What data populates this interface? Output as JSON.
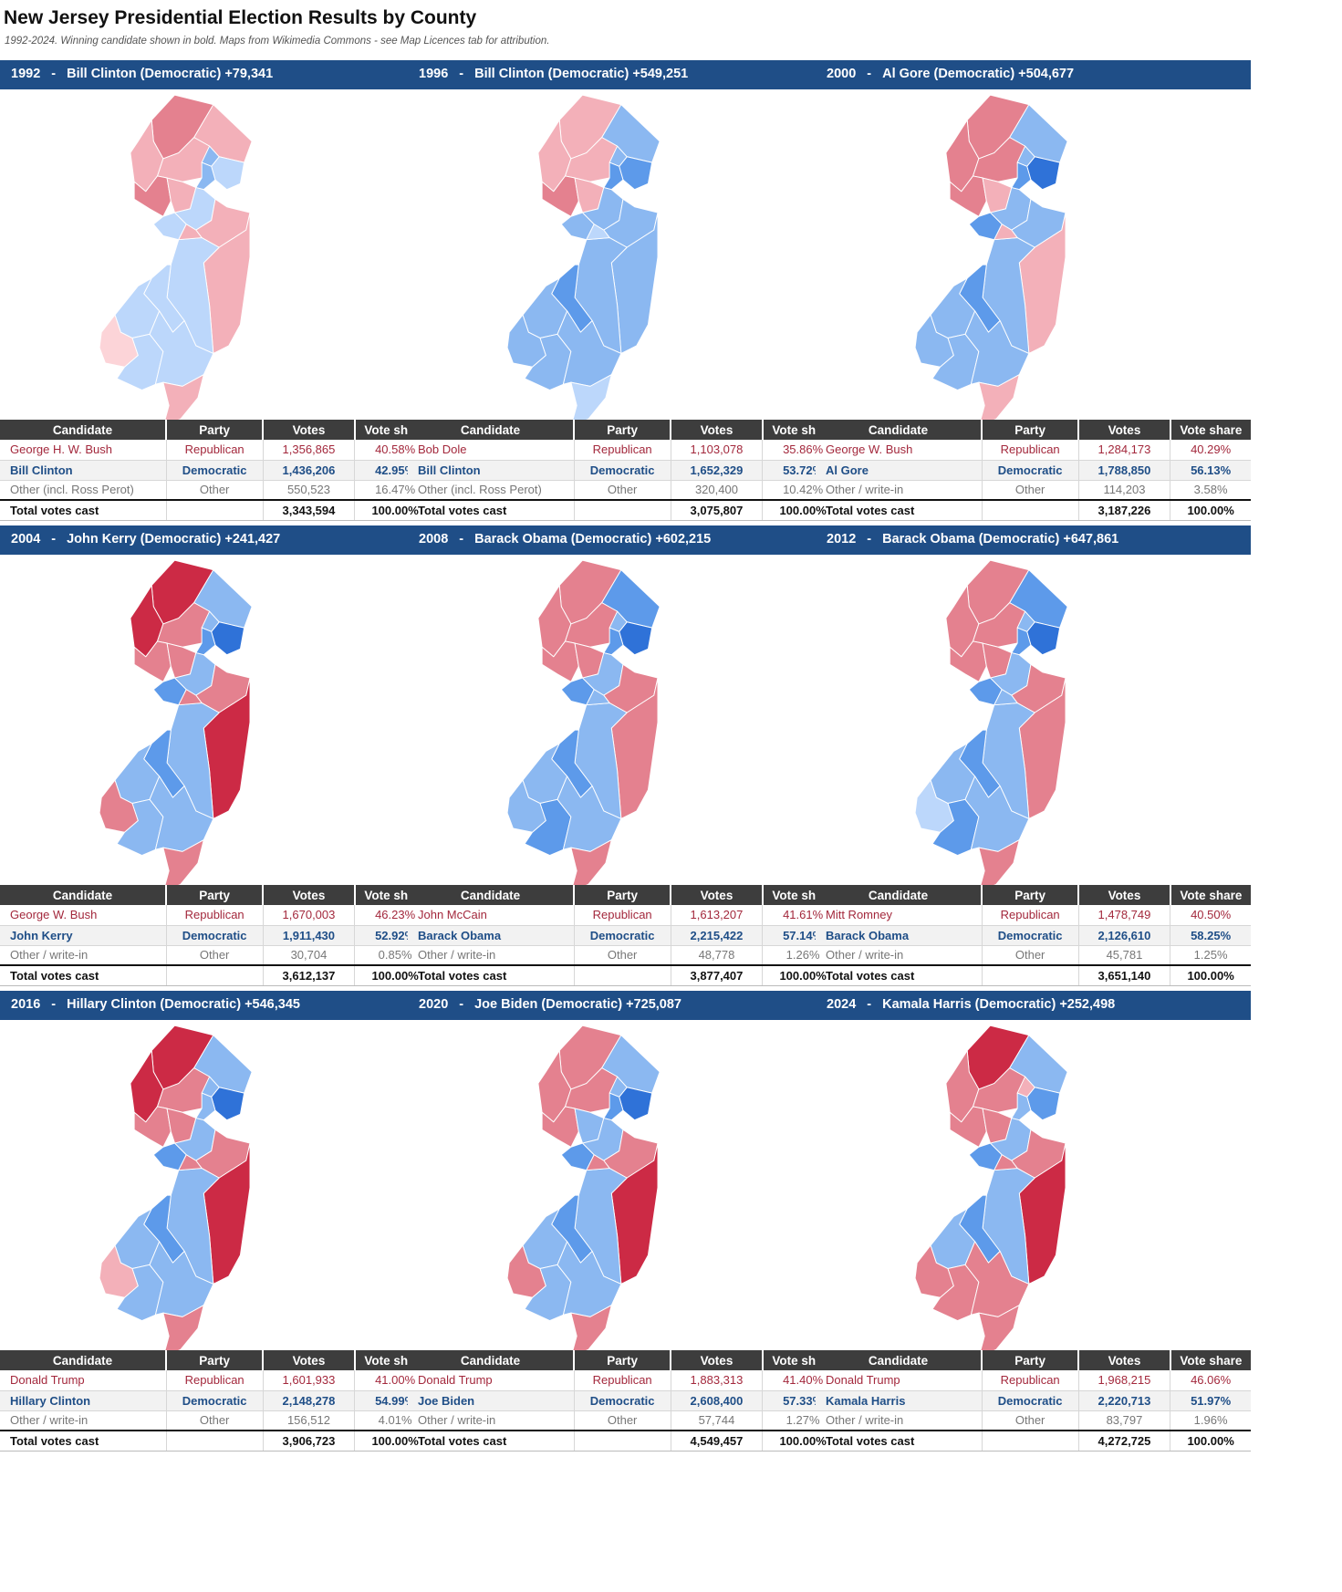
{
  "title": "New Jersey Presidential Election Results by County",
  "subtitle": "1992-2024. Winning candidate shown in bold. Maps from Wikimedia Commons - see Map Licences tab for attribution.",
  "table_headers": {
    "candidate": "Candidate",
    "party": "Party",
    "votes": "Votes",
    "share": "Vote share"
  },
  "colors": {
    "banner": "#1f4e87",
    "header": "#3d3d3d",
    "dem_text": "#1f4e87",
    "rep_text": "#a3283c",
    "scale": {
      "D1": "#bcd7fb",
      "D2": "#8bb8f1",
      "D3": "#5d9aea",
      "D4": "#2f72d8",
      "R0": "#fcd4d8",
      "R1": "#f3b0b9",
      "R2": "#e4818f",
      "R3": "#cc2a45"
    }
  },
  "panels": [
    {
      "year": "1992",
      "headline": "Bill Clinton (Democratic) +79,341",
      "rows": [
        {
          "candidate": "George H. W. Bush",
          "party": "Republican",
          "votes": "1,356,865",
          "share": "40.58%"
        },
        {
          "candidate": "Bill Clinton",
          "party": "Democratic",
          "votes": "1,436,206",
          "share": "42.95%"
        },
        {
          "candidate": "Other (incl. Ross Perot)",
          "party": "Other",
          "votes": "550,523",
          "share": "16.47%"
        },
        {
          "candidate": "Total votes cast",
          "party": "",
          "votes": "3,343,594",
          "share": "100.00%"
        }
      ],
      "winner": "dem",
      "map": [
        "R2",
        "R1",
        "R1",
        "R1",
        "R2",
        "R1",
        "D1",
        "D2",
        "D2",
        "D1",
        "D1",
        "R1",
        "R1",
        "D1",
        "D1",
        "D1",
        "R0",
        "D1",
        "D1",
        "R1",
        "R1"
      ]
    },
    {
      "year": "1996",
      "headline": "Bill Clinton (Democratic) +549,251",
      "rows": [
        {
          "candidate": "Bob Dole",
          "party": "Republican",
          "votes": "1,103,078",
          "share": "35.86%"
        },
        {
          "candidate": "Bill Clinton",
          "party": "Democratic",
          "votes": "1,652,329",
          "share": "53.72%"
        },
        {
          "candidate": "Other (incl. Ross Perot)",
          "party": "Other",
          "votes": "320,400",
          "share": "10.42%"
        },
        {
          "candidate": "Total votes cast",
          "party": "",
          "votes": "3,075,807",
          "share": "100.00%"
        }
      ],
      "winner": "dem",
      "map": [
        "R1",
        "D2",
        "R1",
        "R1",
        "R2",
        "R1",
        "D3",
        "D2",
        "D3",
        "D2",
        "D2",
        "D2",
        "D2",
        "D2",
        "D3",
        "D2",
        "D2",
        "D2",
        "D2",
        "D1",
        "D1"
      ]
    },
    {
      "year": "2000",
      "headline": "Al Gore (Democratic) +504,677",
      "rows": [
        {
          "candidate": "George W. Bush",
          "party": "Republican",
          "votes": "1,284,173",
          "share": "40.29%"
        },
        {
          "candidate": "Al Gore",
          "party": "Democratic",
          "votes": "1,788,850",
          "share": "56.13%"
        },
        {
          "candidate": "Other / write-in",
          "party": "Other",
          "votes": "114,203",
          "share": "3.58%"
        },
        {
          "candidate": "Total votes cast",
          "party": "",
          "votes": "3,187,226",
          "share": "100.00%"
        }
      ],
      "winner": "dem",
      "map": [
        "R2",
        "D2",
        "R2",
        "R2",
        "R2",
        "R1",
        "D4",
        "D2",
        "D3",
        "D3",
        "D2",
        "D2",
        "R1",
        "D2",
        "D3",
        "D2",
        "D2",
        "D2",
        "D2",
        "R1",
        "R1"
      ]
    },
    {
      "year": "2004",
      "headline": "John Kerry (Democratic) +241,427",
      "rows": [
        {
          "candidate": "George W. Bush",
          "party": "Republican",
          "votes": "1,670,003",
          "share": "46.23%"
        },
        {
          "candidate": "John Kerry",
          "party": "Democratic",
          "votes": "1,911,430",
          "share": "52.92%"
        },
        {
          "candidate": "Other / write-in",
          "party": "Other",
          "votes": "30,704",
          "share": "0.85%"
        },
        {
          "candidate": "Total votes cast",
          "party": "",
          "votes": "3,612,137",
          "share": "100.00%"
        }
      ],
      "winner": "dem",
      "map": [
        "R3",
        "D2",
        "R3",
        "R2",
        "R2",
        "R2",
        "D4",
        "D2",
        "D3",
        "D3",
        "D2",
        "R2",
        "R3",
        "D2",
        "D3",
        "D2",
        "R2",
        "D2",
        "D2",
        "R2",
        "R2"
      ]
    },
    {
      "year": "2008",
      "headline": "Barack Obama (Democratic) +602,215",
      "rows": [
        {
          "candidate": "John McCain",
          "party": "Republican",
          "votes": "1,613,207",
          "share": "41.61%"
        },
        {
          "candidate": "Barack Obama",
          "party": "Democratic",
          "votes": "2,215,422",
          "share": "57.14%"
        },
        {
          "candidate": "Other / write-in",
          "party": "Other",
          "votes": "48,778",
          "share": "1.26%"
        },
        {
          "candidate": "Total votes cast",
          "party": "",
          "votes": "3,877,407",
          "share": "100.00%"
        }
      ],
      "winner": "dem",
      "map": [
        "R2",
        "D3",
        "R2",
        "R2",
        "R2",
        "R2",
        "D4",
        "D2",
        "D3",
        "D3",
        "D2",
        "R2",
        "R2",
        "D2",
        "D3",
        "D2",
        "D2",
        "D3",
        "D2",
        "R2",
        "D2"
      ]
    },
    {
      "year": "2012",
      "headline": "Barack Obama (Democratic) +647,861",
      "rows": [
        {
          "candidate": "Mitt Romney",
          "party": "Republican",
          "votes": "1,478,749",
          "share": "40.50%"
        },
        {
          "candidate": "Barack Obama",
          "party": "Democratic",
          "votes": "2,126,610",
          "share": "58.25%"
        },
        {
          "candidate": "Other / write-in",
          "party": "Other",
          "votes": "45,781",
          "share": "1.25%"
        },
        {
          "candidate": "Total votes cast",
          "party": "",
          "votes": "3,651,140",
          "share": "100.00%"
        }
      ],
      "winner": "dem",
      "map": [
        "R2",
        "D3",
        "R2",
        "R2",
        "R2",
        "R2",
        "D4",
        "D2",
        "D3",
        "D3",
        "D2",
        "R2",
        "R2",
        "D2",
        "D3",
        "D2",
        "D1",
        "D3",
        "D2",
        "R2",
        "D2"
      ]
    },
    {
      "year": "2016",
      "headline": "Hillary Clinton (Democratic) +546,345",
      "rows": [
        {
          "candidate": "Donald Trump",
          "party": "Republican",
          "votes": "1,601,933",
          "share": "41.00%"
        },
        {
          "candidate": "Hillary Clinton",
          "party": "Democratic",
          "votes": "2,148,278",
          "share": "54.99%"
        },
        {
          "candidate": "Other / write-in",
          "party": "Other",
          "votes": "156,512",
          "share": "4.01%"
        },
        {
          "candidate": "Total votes cast",
          "party": "",
          "votes": "3,906,723",
          "share": "100.00%"
        }
      ],
      "winner": "dem",
      "map": [
        "R3",
        "D2",
        "R3",
        "R2",
        "R2",
        "R2",
        "D4",
        "D2",
        "D2",
        "D3",
        "D2",
        "R2",
        "R3",
        "D2",
        "D3",
        "D2",
        "R1",
        "D2",
        "D2",
        "R2",
        "R2"
      ]
    },
    {
      "year": "2020",
      "headline": "Joe Biden (Democratic) +725,087",
      "rows": [
        {
          "candidate": "Donald Trump",
          "party": "Republican",
          "votes": "1,883,313",
          "share": "41.40%"
        },
        {
          "candidate": "Joe Biden",
          "party": "Democratic",
          "votes": "2,608,400",
          "share": "57.33%"
        },
        {
          "candidate": "Other / write-in",
          "party": "Other",
          "votes": "57,744",
          "share": "1.27%"
        },
        {
          "candidate": "Total votes cast",
          "party": "",
          "votes": "4,549,457",
          "share": "100.00%"
        }
      ],
      "winner": "dem",
      "map": [
        "R2",
        "D2",
        "R2",
        "R2",
        "R2",
        "D2",
        "D4",
        "D2",
        "D3",
        "D3",
        "D2",
        "R2",
        "R3",
        "D2",
        "D3",
        "D2",
        "R2",
        "D2",
        "D2",
        "R2",
        "R2"
      ]
    },
    {
      "year": "2024",
      "headline": "Kamala Harris (Democratic) +252,498",
      "rows": [
        {
          "candidate": "Donald Trump",
          "party": "Republican",
          "votes": "1,968,215",
          "share": "46.06%"
        },
        {
          "candidate": "Kamala Harris",
          "party": "Democratic",
          "votes": "2,220,713",
          "share": "51.97%"
        },
        {
          "candidate": "Other / write-in",
          "party": "Other",
          "votes": "83,797",
          "share": "1.96%"
        },
        {
          "candidate": "Total votes cast",
          "party": "",
          "votes": "4,272,725",
          "share": "100.00%"
        }
      ],
      "winner": "dem",
      "map": [
        "R3",
        "D2",
        "R2",
        "R2",
        "R2",
        "R2",
        "D3",
        "R1",
        "D2",
        "D3",
        "D2",
        "R2",
        "R3",
        "D2",
        "D3",
        "D2",
        "R2",
        "R2",
        "R2",
        "R2",
        "R2"
      ]
    }
  ]
}
